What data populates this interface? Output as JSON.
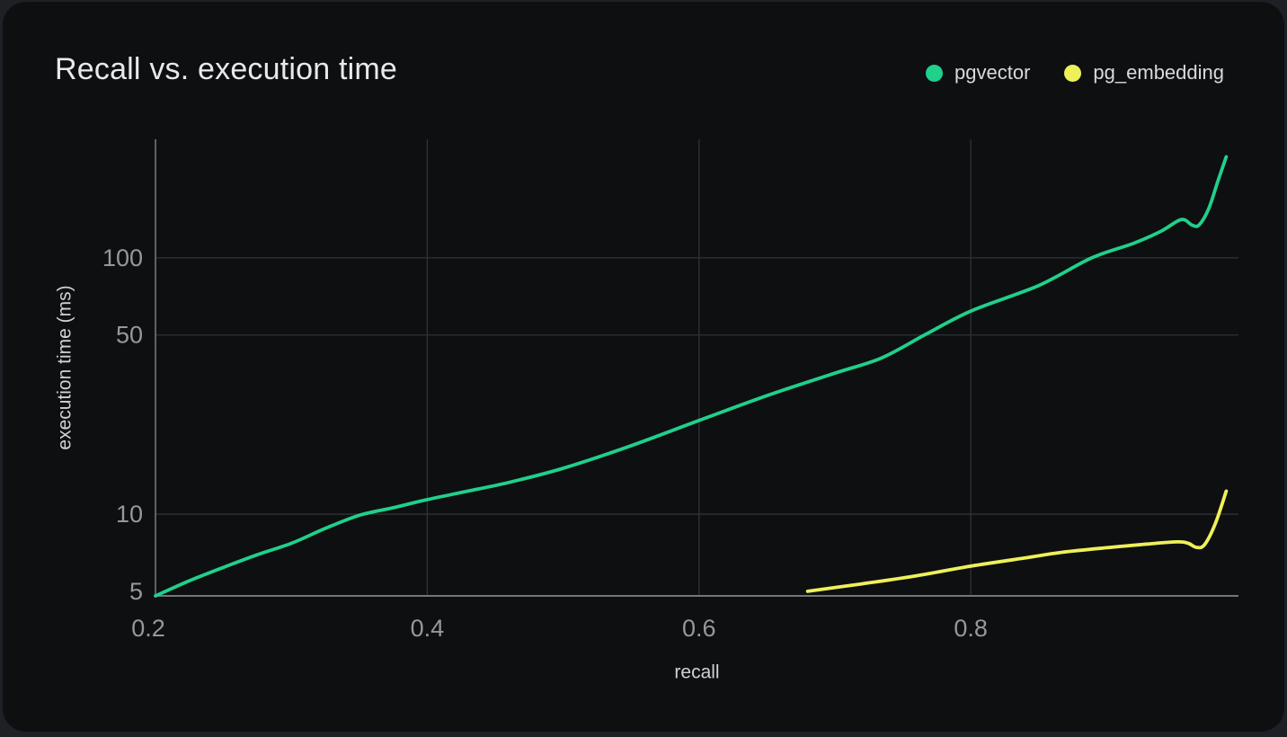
{
  "card": {
    "title": "Recall vs. execution time"
  },
  "legend": {
    "items": [
      {
        "label": "pgvector",
        "color": "#20d08b"
      },
      {
        "label": "pg_embedding",
        "color": "#eef05a"
      }
    ]
  },
  "colors": {
    "background_outer": "#1e2025",
    "card_background": "#0e0f11",
    "grid": "#303234",
    "axis_line": "#73777d",
    "tick_label": "#95989d",
    "axis_title": "#cfd1d3",
    "title_text": "#e8e9ea",
    "pgvector": "#20d08b",
    "pg_embedding": "#eef05a"
  },
  "chart_data": {
    "type": "line",
    "title": "Recall vs. execution time",
    "xlabel": "recall",
    "ylabel": "execution time (ms)",
    "x_scale": "linear",
    "y_scale": "log",
    "xlim": [
      0.2,
      0.997
    ],
    "ylim": [
      4.8,
      290
    ],
    "grid": true,
    "legend_position": "top-right",
    "x_ticks": [
      {
        "value": 0.2,
        "label": "0.2"
      },
      {
        "value": 0.4,
        "label": "0.4"
      },
      {
        "value": 0.6,
        "label": "0.6"
      },
      {
        "value": 0.8,
        "label": "0.8"
      }
    ],
    "y_ticks": [
      {
        "value": 5,
        "label": "5"
      },
      {
        "value": 10,
        "label": "10"
      },
      {
        "value": 50,
        "label": "50"
      },
      {
        "value": 100,
        "label": "100"
      }
    ],
    "x_gridlines": [
      0.4,
      0.6,
      0.8
    ],
    "y_gridlines": [
      10,
      50,
      100
    ],
    "series": [
      {
        "name": "pgvector",
        "color": "#20d08b",
        "points": [
          [
            0.2,
            4.8
          ],
          [
            0.225,
            5.5
          ],
          [
            0.25,
            6.2
          ],
          [
            0.275,
            6.95
          ],
          [
            0.3,
            7.7
          ],
          [
            0.325,
            8.8
          ],
          [
            0.35,
            9.9
          ],
          [
            0.375,
            10.6
          ],
          [
            0.4,
            11.4
          ],
          [
            0.43,
            12.3
          ],
          [
            0.46,
            13.3
          ],
          [
            0.5,
            15.1
          ],
          [
            0.55,
            18.5
          ],
          [
            0.6,
            23.2
          ],
          [
            0.65,
            29.0
          ],
          [
            0.7,
            35.5
          ],
          [
            0.734,
            40.6
          ],
          [
            0.766,
            50.0
          ],
          [
            0.8,
            62.0
          ],
          [
            0.85,
            78.0
          ],
          [
            0.889,
            100.0
          ],
          [
            0.92,
            114.0
          ],
          [
            0.94,
            127.0
          ],
          [
            0.955,
            141.0
          ],
          [
            0.963,
            134.0
          ],
          [
            0.968,
            134.5
          ],
          [
            0.975,
            155.0
          ],
          [
            0.982,
            200.0
          ],
          [
            0.988,
            248.0
          ]
        ]
      },
      {
        "name": "pg_embedding",
        "color": "#eef05a",
        "points": [
          [
            0.68,
            5.0
          ],
          [
            0.72,
            5.35
          ],
          [
            0.76,
            5.75
          ],
          [
            0.8,
            6.27
          ],
          [
            0.84,
            6.75
          ],
          [
            0.867,
            7.1
          ],
          [
            0.9,
            7.4
          ],
          [
            0.93,
            7.65
          ],
          [
            0.952,
            7.8
          ],
          [
            0.96,
            7.7
          ],
          [
            0.966,
            7.42
          ],
          [
            0.972,
            7.6
          ],
          [
            0.98,
            9.2
          ],
          [
            0.988,
            12.3
          ]
        ]
      }
    ]
  }
}
